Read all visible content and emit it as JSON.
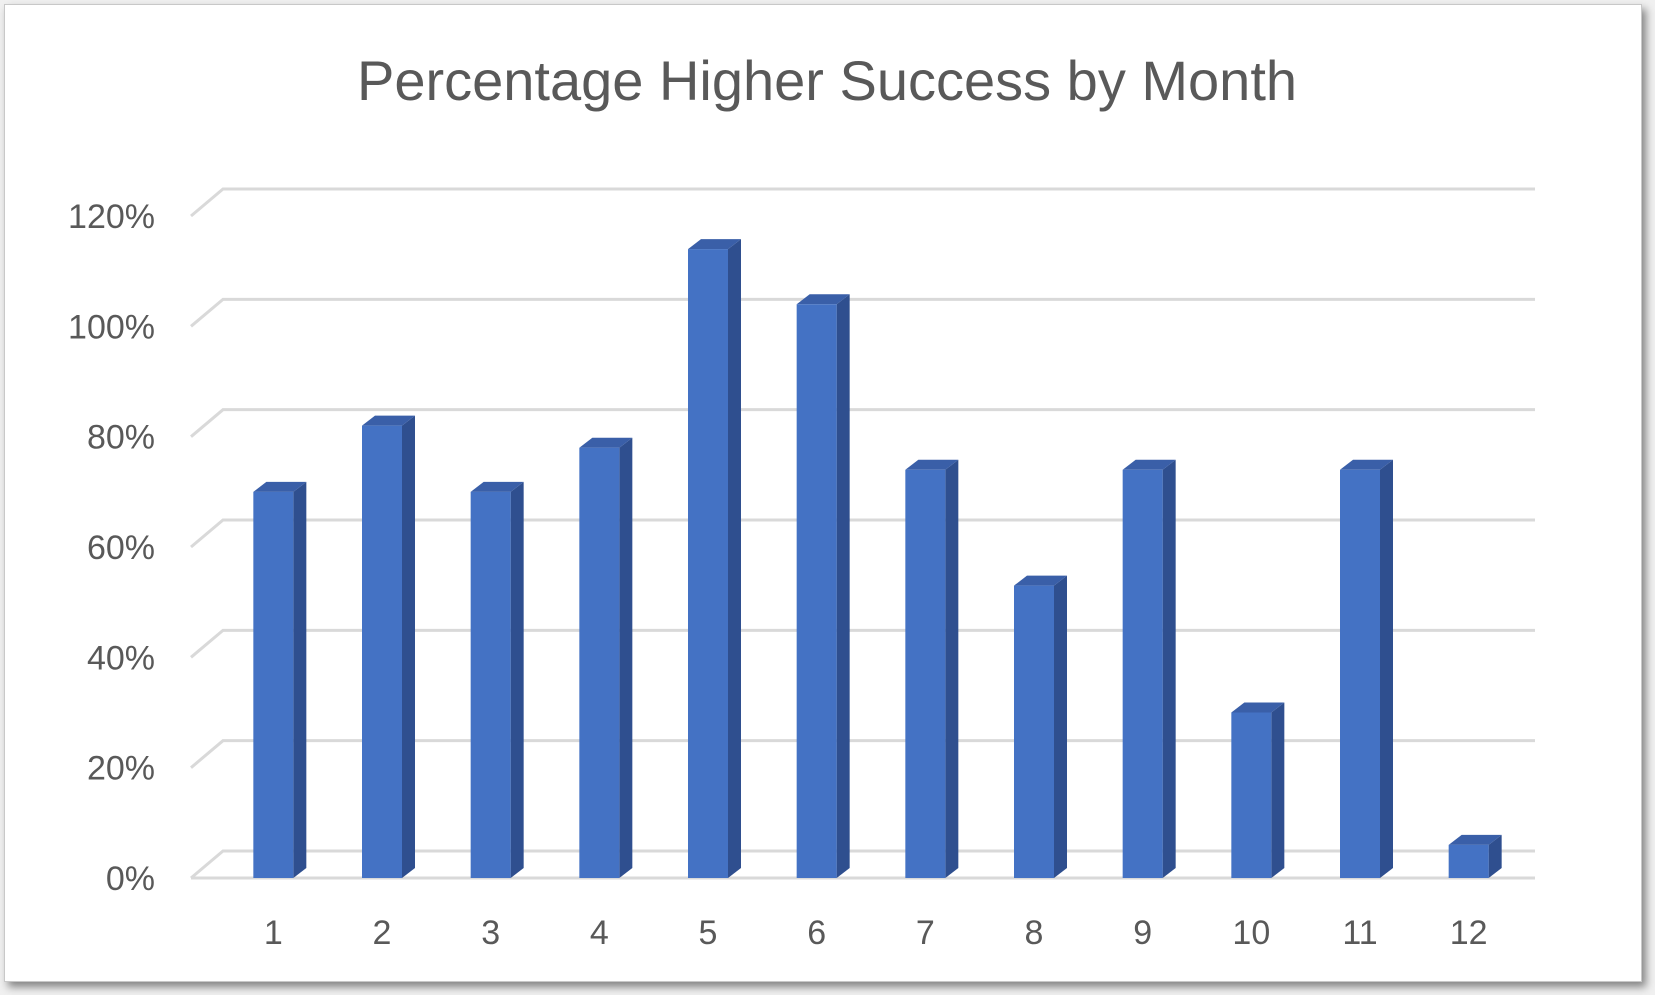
{
  "chart_data": {
    "type": "bar",
    "title": "Percentage Higher Success by Month",
    "xlabel": "",
    "ylabel": "",
    "categories": [
      "1",
      "2",
      "3",
      "4",
      "5",
      "6",
      "7",
      "8",
      "9",
      "10",
      "11",
      "12"
    ],
    "values": [
      0.7,
      0.82,
      0.7,
      0.78,
      1.14,
      1.04,
      0.74,
      0.53,
      0.74,
      0.3,
      0.74,
      0.06
    ],
    "ylim": [
      0,
      1.2
    ],
    "yticks": [
      0,
      0.2,
      0.4,
      0.6,
      0.8,
      1.0,
      1.2
    ],
    "ytick_labels": [
      "0%",
      "20%",
      "40%",
      "60%",
      "80%",
      "100%",
      "120%"
    ],
    "grid": true,
    "legend": "none",
    "style": "3d-column",
    "colors": {
      "bar_front": "#4472c4",
      "bar_side": "#2f4f8f",
      "bar_top": "#3a5fa8",
      "gridline": "#d9d9d9",
      "text": "#595959"
    }
  }
}
